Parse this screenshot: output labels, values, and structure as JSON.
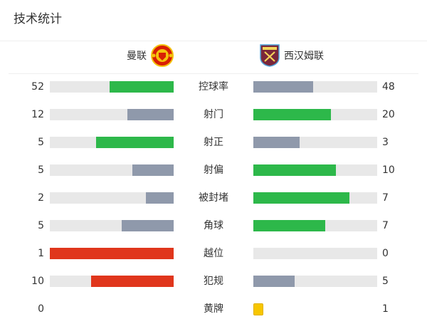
{
  "title": "技术统计",
  "home": {
    "name": "曼联",
    "logo": "manchester-united-crest"
  },
  "away": {
    "name": "西汉姆联",
    "logo": "west-ham-crest"
  },
  "colors": {
    "green": "#2db84a",
    "gray": "#8f99ab",
    "red": "#e0361c",
    "track": "#e8e8e8",
    "yellow": "#f7c600"
  },
  "stats": [
    {
      "label": "控球率",
      "home": "52",
      "away": "48",
      "home_frac": 0.52,
      "away_frac": 0.48,
      "home_color": "green",
      "away_color": "gray"
    },
    {
      "label": "射门",
      "home": "12",
      "away": "20",
      "home_frac": 0.375,
      "away_frac": 0.625,
      "home_color": "gray",
      "away_color": "green"
    },
    {
      "label": "射正",
      "home": "5",
      "away": "3",
      "home_frac": 0.625,
      "away_frac": 0.375,
      "home_color": "green",
      "away_color": "gray"
    },
    {
      "label": "射偏",
      "home": "5",
      "away": "10",
      "home_frac": 0.333,
      "away_frac": 0.667,
      "home_color": "gray",
      "away_color": "green"
    },
    {
      "label": "被封堵",
      "home": "2",
      "away": "7",
      "home_frac": 0.222,
      "away_frac": 0.778,
      "home_color": "gray",
      "away_color": "green"
    },
    {
      "label": "角球",
      "home": "5",
      "away": "7",
      "home_frac": 0.417,
      "away_frac": 0.583,
      "home_color": "gray",
      "away_color": "green"
    },
    {
      "label": "越位",
      "home": "1",
      "away": "0",
      "home_frac": 1,
      "away_frac": 0,
      "home_color": "red",
      "away_color": "gray"
    },
    {
      "label": "犯规",
      "home": "10",
      "away": "5",
      "home_frac": 0.667,
      "away_frac": 0.333,
      "home_color": "red",
      "away_color": "gray"
    },
    {
      "label": "黄牌",
      "home": "0",
      "away": "1",
      "type": "card",
      "card_icon": "yellow-card-icon"
    }
  ]
}
